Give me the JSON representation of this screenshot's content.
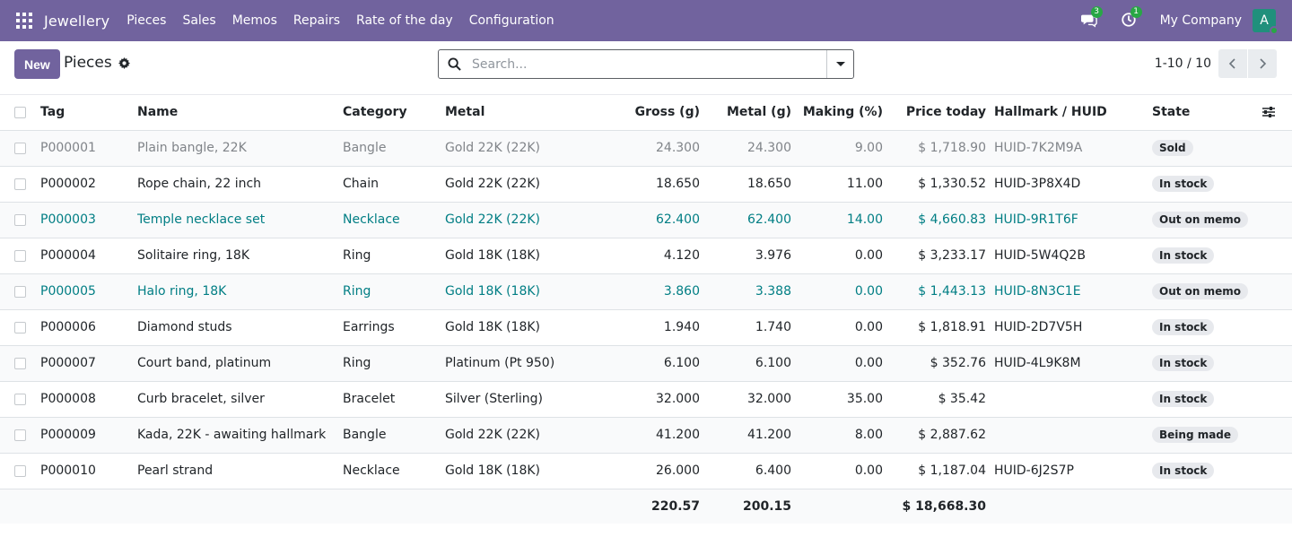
{
  "navbar": {
    "brand": "Jewellery",
    "menu": [
      "Pieces",
      "Sales",
      "Memos",
      "Repairs",
      "Rate of the day",
      "Configuration"
    ],
    "messages_count": "3",
    "activities_count": "1",
    "company": "My Company",
    "avatar_letter": "A"
  },
  "control": {
    "new_label": "New",
    "title": "Pieces",
    "search_placeholder": "Search...",
    "pager": "1-10 / 10"
  },
  "table": {
    "headers": {
      "tag": "Tag",
      "name": "Name",
      "category": "Category",
      "metal": "Metal",
      "gross": "Gross (g)",
      "metal_g": "Metal (g)",
      "making": "Making (%)",
      "price": "Price today",
      "hallmark": "Hallmark / HUID",
      "state": "State"
    },
    "rows": [
      {
        "tag": "P000001",
        "name": "Plain bangle, 22K",
        "category": "Bangle",
        "metal": "Gold 22K (22K)",
        "gross": "24.300",
        "metal_g": "24.300",
        "making": "9.00",
        "price": "$ 1,718.90",
        "hallmark": "HUID-7K2M9A",
        "state": "Sold"
      },
      {
        "tag": "P000002",
        "name": "Rope chain, 22 inch",
        "category": "Chain",
        "metal": "Gold 22K (22K)",
        "gross": "18.650",
        "metal_g": "18.650",
        "making": "11.00",
        "price": "$ 1,330.52",
        "hallmark": "HUID-3P8X4D",
        "state": "In stock"
      },
      {
        "tag": "P000003",
        "name": "Temple necklace set",
        "category": "Necklace",
        "metal": "Gold 22K (22K)",
        "gross": "62.400",
        "metal_g": "62.400",
        "making": "14.00",
        "price": "$ 4,660.83",
        "hallmark": "HUID-9R1T6F",
        "state": "Out on memo"
      },
      {
        "tag": "P000004",
        "name": "Solitaire ring, 18K",
        "category": "Ring",
        "metal": "Gold 18K (18K)",
        "gross": "4.120",
        "metal_g": "3.976",
        "making": "0.00",
        "price": "$ 3,233.17",
        "hallmark": "HUID-5W4Q2B",
        "state": "In stock"
      },
      {
        "tag": "P000005",
        "name": "Halo ring, 18K",
        "category": "Ring",
        "metal": "Gold 18K (18K)",
        "gross": "3.860",
        "metal_g": "3.388",
        "making": "0.00",
        "price": "$ 1,443.13",
        "hallmark": "HUID-8N3C1E",
        "state": "Out on memo"
      },
      {
        "tag": "P000006",
        "name": "Diamond studs",
        "category": "Earrings",
        "metal": "Gold 18K (18K)",
        "gross": "1.940",
        "metal_g": "1.740",
        "making": "0.00",
        "price": "$ 1,818.91",
        "hallmark": "HUID-2D7V5H",
        "state": "In stock"
      },
      {
        "tag": "P000007",
        "name": "Court band, platinum",
        "category": "Ring",
        "metal": "Platinum (Pt 950)",
        "gross": "6.100",
        "metal_g": "6.100",
        "making": "0.00",
        "price": "$ 352.76",
        "hallmark": "HUID-4L9K8M",
        "state": "In stock"
      },
      {
        "tag": "P000008",
        "name": "Curb bracelet, silver",
        "category": "Bracelet",
        "metal": "Silver (Sterling)",
        "gross": "32.000",
        "metal_g": "32.000",
        "making": "35.00",
        "price": "$ 35.42",
        "hallmark": "",
        "state": "In stock"
      },
      {
        "tag": "P000009",
        "name": "Kada, 22K - awaiting hallmark",
        "category": "Bangle",
        "metal": "Gold 22K (22K)",
        "gross": "41.200",
        "metal_g": "41.200",
        "making": "8.00",
        "price": "$ 2,887.62",
        "hallmark": "",
        "state": "Being made"
      },
      {
        "tag": "P000010",
        "name": "Pearl strand",
        "category": "Necklace",
        "metal": "Gold 18K (18K)",
        "gross": "26.000",
        "metal_g": "6.400",
        "making": "0.00",
        "price": "$ 1,187.04",
        "hallmark": "HUID-6J2S7P",
        "state": "In stock"
      }
    ],
    "totals": {
      "gross": "220.57",
      "metal_g": "200.15",
      "price": "$ 18,668.30"
    }
  },
  "colors": {
    "navbar": "#71639e",
    "link": "#017e84",
    "muted": "#808489"
  }
}
